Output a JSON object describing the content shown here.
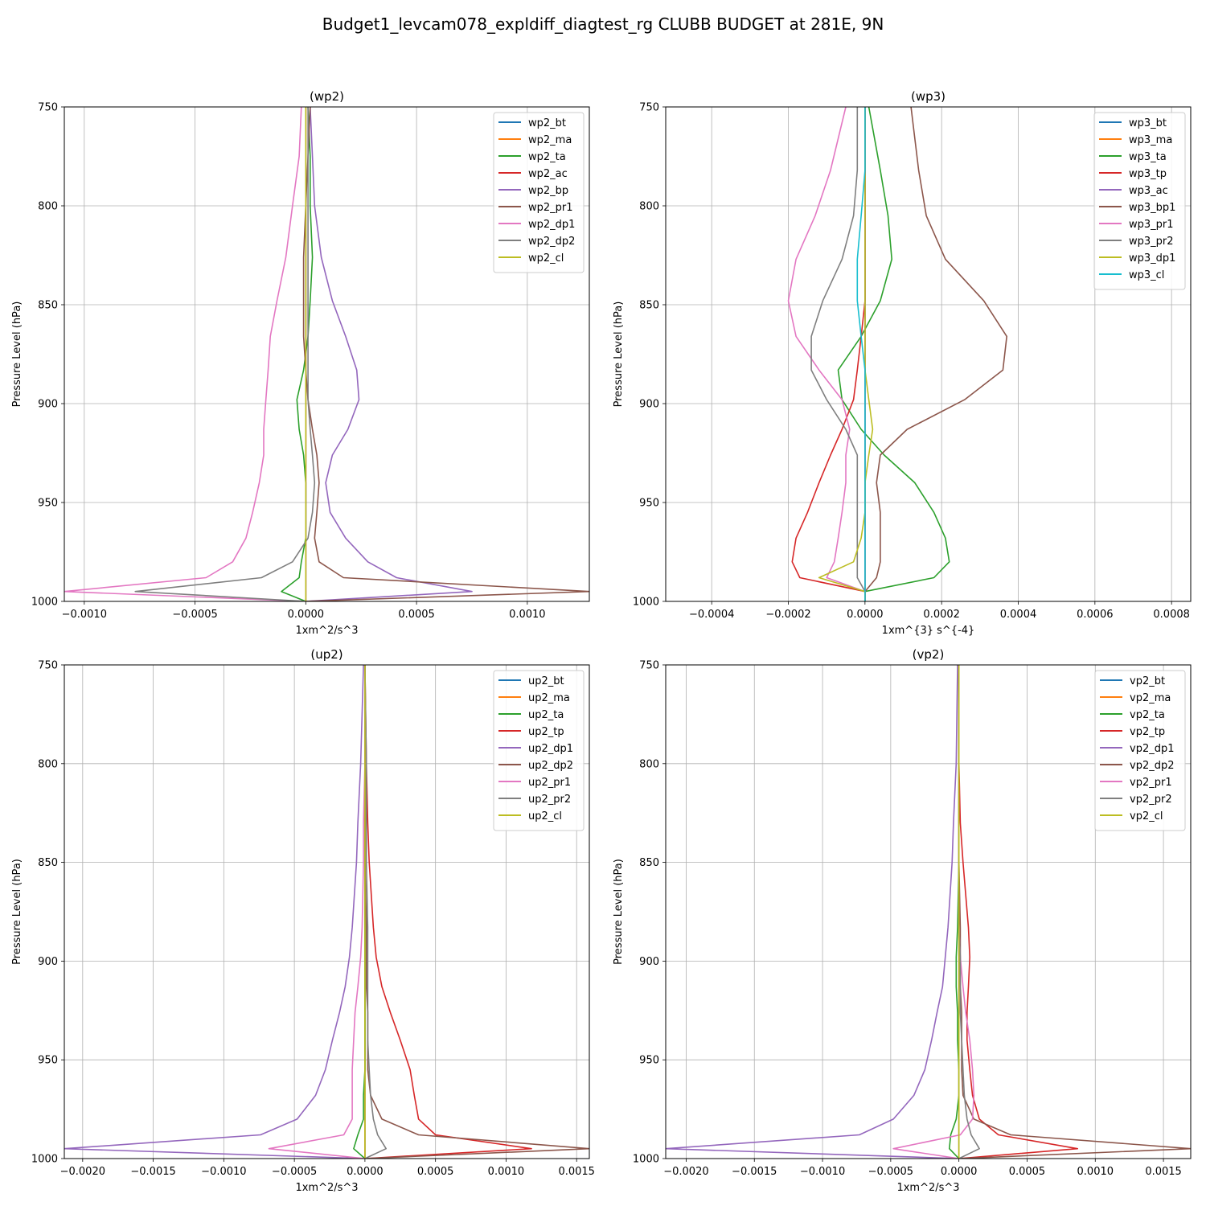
{
  "figure_title": "Budget1_levcam078_expldiff_diagtest_rg CLUBB BUDGET at 281E, 9N",
  "colors": [
    "#1f77b4",
    "#ff7f0e",
    "#2ca02c",
    "#d62728",
    "#9467bd",
    "#8c564b",
    "#e377c2",
    "#7f7f7f",
    "#bcbd22",
    "#17becf"
  ],
  "chart_data": [
    {
      "type": "line",
      "title": "(wp2)",
      "xlabel": "1xm^2/s^3",
      "ylabel": "Pressure Level (hPa)",
      "xlim": [
        -0.00109,
        0.00128
      ],
      "ylim": [
        1000,
        750
      ],
      "xticks": [
        -0.001,
        -0.0005,
        0.0,
        0.0005,
        0.001
      ],
      "xtick_labels": [
        "−0.0010",
        "−0.0005",
        "0.0000",
        "0.0005",
        "0.0010"
      ],
      "yticks": [
        750,
        800,
        850,
        900,
        950,
        1000
      ],
      "ytick_labels": [
        "750",
        "800",
        "850",
        "900",
        "950",
        "1000"
      ],
      "grid": true,
      "legend": "upper right",
      "levels": [
        750,
        775,
        800,
        826,
        848,
        866,
        883,
        898,
        913,
        926,
        940,
        955,
        968,
        980,
        988,
        995,
        1000
      ],
      "series": [
        {
          "name": "wp2_bt",
          "values": [
            0,
            0,
            0,
            0,
            0,
            0,
            0,
            0,
            0,
            0,
            0,
            0,
            0,
            0,
            0,
            0,
            0
          ]
        },
        {
          "name": "wp2_ma",
          "values": [
            0,
            0,
            0,
            0,
            0,
            0,
            0,
            0,
            0,
            0,
            0,
            0,
            0,
            0,
            0,
            0,
            0
          ]
        },
        {
          "name": "wp2_ta",
          "values": [
            1e-05,
            2e-05,
            2e-05,
            3e-05,
            2e-05,
            1e-05,
            -1e-05,
            -4e-05,
            -3e-05,
            -1e-05,
            0,
            0,
            0,
            -2e-05,
            -3e-05,
            -0.00011,
            0
          ]
        },
        {
          "name": "wp2_ac",
          "values": [
            0,
            0,
            0,
            0,
            0,
            0,
            0,
            0,
            0,
            0,
            0,
            0,
            0,
            0,
            0,
            0,
            0
          ]
        },
        {
          "name": "wp2_bp",
          "values": [
            2e-05,
            3e-05,
            4e-05,
            7e-05,
            0.00012,
            0.00018,
            0.00023,
            0.00024,
            0.00019,
            0.00012,
            9e-05,
            0.00011,
            0.00018,
            0.00028,
            0.00041,
            0.00075,
            0
          ]
        },
        {
          "name": "wp2_pr1",
          "values": [
            2e-05,
            1e-05,
            0,
            -1e-05,
            -1e-05,
            -1e-05,
            0,
            1e-05,
            3e-05,
            5e-05,
            6e-05,
            5e-05,
            4e-05,
            6e-05,
            0.00017,
            0.00128,
            0
          ]
        },
        {
          "name": "wp2_dp1",
          "values": [
            -2e-05,
            -3e-05,
            -6e-05,
            -9e-05,
            -0.00013,
            -0.00016,
            -0.00017,
            -0.00018,
            -0.00019,
            -0.00019,
            -0.00021,
            -0.00024,
            -0.00027,
            -0.00033,
            -0.00045,
            -0.00109,
            0
          ]
        },
        {
          "name": "wp2_dp2",
          "values": [
            1e-05,
            1e-05,
            1e-05,
            1e-05,
            1e-05,
            1e-05,
            1e-05,
            1e-05,
            2e-05,
            3e-05,
            4e-05,
            3e-05,
            1e-05,
            -6e-05,
            -0.0002,
            -0.00077,
            0
          ]
        },
        {
          "name": "wp2_cl",
          "values": [
            0,
            0,
            0,
            0,
            0,
            0,
            0,
            0,
            0,
            0,
            0,
            0,
            0,
            0,
            0,
            0,
            0
          ]
        }
      ]
    },
    {
      "type": "line",
      "title": "(wp3)",
      "xlabel": "1xm^{3} s^{-4}",
      "ylabel": "Pressure Level (hPa)",
      "xlim": [
        -0.00052,
        0.00085
      ],
      "ylim": [
        1000,
        750
      ],
      "xticks": [
        -0.0004,
        -0.0002,
        0.0,
        0.0002,
        0.0004,
        0.0006,
        0.0008
      ],
      "xtick_labels": [
        "−0.0004",
        "−0.0002",
        "0.0000",
        "0.0002",
        "0.0004",
        "0.0006",
        "0.0008"
      ],
      "yticks": [
        750,
        800,
        850,
        900,
        950,
        1000
      ],
      "ytick_labels": [
        "750",
        "800",
        "850",
        "900",
        "950",
        "1000"
      ],
      "grid": true,
      "legend": "upper right",
      "levels": [
        750,
        782,
        805,
        827,
        848,
        866,
        883,
        898,
        913,
        926,
        940,
        955,
        968,
        980,
        988,
        995,
        1000
      ],
      "series": [
        {
          "name": "wp3_bt",
          "values": [
            0,
            0,
            0,
            0,
            0,
            0,
            0,
            0,
            0,
            0,
            0,
            0,
            0,
            0,
            0,
            0,
            0
          ]
        },
        {
          "name": "wp3_ma",
          "values": [
            0,
            0,
            0,
            0,
            0,
            0,
            0,
            0,
            0,
            0,
            0,
            0,
            0,
            0,
            0,
            0,
            0
          ]
        },
        {
          "name": "wp3_ta",
          "values": [
            1e-05,
            4e-05,
            6e-05,
            7e-05,
            4e-05,
            -1e-05,
            -7e-05,
            -6e-05,
            -1e-05,
            5e-05,
            0.00013,
            0.00018,
            0.00021,
            0.00022,
            0.00018,
            0,
            0
          ]
        },
        {
          "name": "wp3_tp",
          "values": [
            0,
            0,
            0,
            0,
            0,
            -1e-05,
            -2e-05,
            -3e-05,
            -6e-05,
            -9e-05,
            -0.00012,
            -0.00015,
            -0.00018,
            -0.00019,
            -0.00017,
            0,
            0
          ]
        },
        {
          "name": "wp3_ac",
          "values": [
            0,
            0,
            0,
            0,
            0,
            0,
            0,
            0,
            0,
            0,
            0,
            0,
            0,
            0,
            0,
            0,
            0
          ]
        },
        {
          "name": "wp3_bp1",
          "values": [
            0.00012,
            0.00014,
            0.00016,
            0.00021,
            0.00031,
            0.00037,
            0.00036,
            0.00026,
            0.00011,
            4e-05,
            3e-05,
            4e-05,
            4e-05,
            4e-05,
            3e-05,
            0,
            0
          ]
        },
        {
          "name": "wp3_pr1",
          "values": [
            -5e-05,
            -9e-05,
            -0.00013,
            -0.00018,
            -0.0002,
            -0.00018,
            -0.00012,
            -6e-05,
            -4e-05,
            -5e-05,
            -5e-05,
            -6e-05,
            -7e-05,
            -8e-05,
            -0.0001,
            0,
            0
          ]
        },
        {
          "name": "wp3_pr2",
          "values": [
            -2e-05,
            -2e-05,
            -3e-05,
            -6e-05,
            -0.00011,
            -0.00014,
            -0.00014,
            -0.0001,
            -5e-05,
            -2e-05,
            -2e-05,
            -2e-05,
            -2e-05,
            -2e-05,
            -2e-05,
            0,
            0
          ]
        },
        {
          "name": "wp3_dp1",
          "values": [
            0,
            0,
            0,
            0,
            0,
            0,
            0,
            1e-05,
            2e-05,
            1e-05,
            0,
            0,
            -1e-05,
            -3e-05,
            -0.00012,
            0,
            0
          ]
        },
        {
          "name": "wp3_cl",
          "values": [
            0,
            0,
            -1e-05,
            -2e-05,
            -2e-05,
            -1e-05,
            0,
            0,
            0,
            0,
            0,
            0,
            0,
            0,
            0,
            0,
            0
          ]
        }
      ]
    },
    {
      "type": "line",
      "title": "(up2)",
      "xlabel": "1xm^2/s^3",
      "ylabel": "Pressure Level (hPa)",
      "xlim": [
        -0.00213,
        0.00159
      ],
      "ylim": [
        1000,
        750
      ],
      "xticks": [
        -0.002,
        -0.0015,
        -0.001,
        -0.0005,
        0.0,
        0.0005,
        0.001,
        0.0015
      ],
      "xtick_labels": [
        "−0.0020",
        "−0.0015",
        "−0.0010",
        "−0.0005",
        "0.0000",
        "0.0005",
        "0.0010",
        "0.0015"
      ],
      "yticks": [
        750,
        800,
        850,
        900,
        950,
        1000
      ],
      "ytick_labels": [
        "750",
        "800",
        "850",
        "900",
        "950",
        "1000"
      ],
      "grid": true,
      "legend": "upper right",
      "levels": [
        750,
        800,
        830,
        850,
        883,
        898,
        913,
        926,
        940,
        955,
        968,
        980,
        988,
        995,
        1000
      ],
      "series": [
        {
          "name": "up2_bt",
          "values": [
            0,
            0,
            0,
            0,
            0,
            0,
            0,
            0,
            0,
            0,
            0,
            0,
            0,
            0,
            0
          ]
        },
        {
          "name": "up2_ma",
          "values": [
            0,
            0,
            0,
            0,
            0,
            0,
            0,
            0,
            0,
            0,
            0,
            0,
            0,
            0,
            0
          ]
        },
        {
          "name": "up2_ta",
          "values": [
            0,
            0,
            0,
            0,
            0,
            0,
            0,
            0,
            0,
            0,
            -1e-05,
            -1e-05,
            -5e-05,
            -8e-05,
            0
          ]
        },
        {
          "name": "up2_tp",
          "values": [
            0,
            1e-05,
            2e-05,
            3e-05,
            6e-05,
            8e-05,
            0.00012,
            0.00018,
            0.00025,
            0.00032,
            0.00035,
            0.00038,
            0.0005,
            0.00118,
            0
          ]
        },
        {
          "name": "up2_dp1",
          "values": [
            -1e-05,
            -3e-05,
            -5e-05,
            -6e-05,
            -9e-05,
            -0.00011,
            -0.00014,
            -0.00018,
            -0.00023,
            -0.00028,
            -0.00035,
            -0.00048,
            -0.00074,
            -0.00213,
            0
          ]
        },
        {
          "name": "up2_dp2",
          "values": [
            0,
            0,
            0,
            0,
            1e-05,
            1e-05,
            1e-05,
            2e-05,
            2e-05,
            2e-05,
            4e-05,
            0.00012,
            0.00038,
            0.00159,
            0
          ]
        },
        {
          "name": "up2_pr1",
          "values": [
            0,
            0,
            -1e-05,
            -1e-05,
            -2e-05,
            -3e-05,
            -5e-05,
            -7e-05,
            -8e-05,
            -9e-05,
            -9e-05,
            -9e-05,
            -0.00015,
            -0.00068,
            0
          ]
        },
        {
          "name": "up2_pr2",
          "values": [
            0,
            1e-05,
            1e-05,
            1e-05,
            2e-05,
            2e-05,
            2e-05,
            2e-05,
            2e-05,
            3e-05,
            4e-05,
            6e-05,
            9e-05,
            0.00015,
            0
          ]
        },
        {
          "name": "up2_cl",
          "values": [
            0,
            0,
            0,
            0,
            0,
            0,
            0,
            0,
            0,
            0,
            0,
            0,
            0,
            0,
            0
          ]
        }
      ]
    },
    {
      "type": "line",
      "title": "(vp2)",
      "xlabel": "1xm^2/s^3",
      "ylabel": "Pressure Level (hPa)",
      "xlim": [
        -0.00215,
        0.0017
      ],
      "ylim": [
        1000,
        750
      ],
      "xticks": [
        -0.002,
        -0.0015,
        -0.001,
        -0.0005,
        0.0,
        0.0005,
        0.001,
        0.0015
      ],
      "xtick_labels": [
        "−0.0020",
        "−0.0015",
        "−0.0010",
        "−0.0005",
        "0.0000",
        "0.0005",
        "0.0010",
        "0.0015"
      ],
      "yticks": [
        750,
        800,
        850,
        900,
        950,
        1000
      ],
      "ytick_labels": [
        "750",
        "800",
        "850",
        "900",
        "950",
        "1000"
      ],
      "grid": true,
      "legend": "upper right",
      "levels": [
        750,
        800,
        830,
        850,
        883,
        898,
        913,
        926,
        940,
        955,
        968,
        980,
        988,
        995,
        1000
      ],
      "series": [
        {
          "name": "vp2_bt",
          "values": [
            0,
            0,
            0,
            0,
            0,
            0,
            0,
            0,
            0,
            0,
            0,
            0,
            0,
            0,
            0
          ]
        },
        {
          "name": "vp2_ma",
          "values": [
            0,
            0,
            0,
            0,
            0,
            0,
            0,
            0,
            0,
            0,
            0,
            0,
            0,
            0,
            0
          ]
        },
        {
          "name": "vp2_ta",
          "values": [
            0,
            0,
            0,
            0,
            -1e-05,
            -2e-05,
            -2e-05,
            -1e-05,
            -1e-05,
            0,
            0,
            -2e-05,
            -6e-05,
            -7e-05,
            0
          ]
        },
        {
          "name": "vp2_tp",
          "values": [
            0,
            0,
            1e-05,
            3e-05,
            7e-05,
            8e-05,
            7e-05,
            6e-05,
            6e-05,
            8e-05,
            0.0001,
            0.00015,
            0.00029,
            0.00087,
            0
          ]
        },
        {
          "name": "vp2_dp1",
          "values": [
            -1e-05,
            -2e-05,
            -4e-05,
            -5e-05,
            -8e-05,
            -0.0001,
            -0.00012,
            -0.00016,
            -0.0002,
            -0.00025,
            -0.00033,
            -0.00048,
            -0.00073,
            -0.00215,
            0
          ]
        },
        {
          "name": "vp2_dp2",
          "values": [
            0,
            0,
            0,
            0,
            1e-05,
            1e-05,
            1e-05,
            2e-05,
            2e-05,
            2e-05,
            3e-05,
            0.00011,
            0.00038,
            0.0017,
            0
          ]
        },
        {
          "name": "vp2_pr1",
          "values": [
            0,
            0,
            0,
            0,
            0,
            1e-05,
            3e-05,
            5e-05,
            8e-05,
            0.0001,
            0.00011,
            0.0001,
            1e-05,
            -0.00048,
            0
          ]
        },
        {
          "name": "vp2_pr2",
          "values": [
            0,
            0,
            0,
            0,
            0,
            1e-05,
            1e-05,
            1e-05,
            2e-05,
            3e-05,
            4e-05,
            6e-05,
            9e-05,
            0.00015,
            0
          ]
        },
        {
          "name": "vp2_cl",
          "values": [
            0,
            0,
            0,
            0,
            0,
            0,
            0,
            0,
            0,
            0,
            0,
            0,
            0,
            0,
            0
          ]
        }
      ]
    }
  ]
}
